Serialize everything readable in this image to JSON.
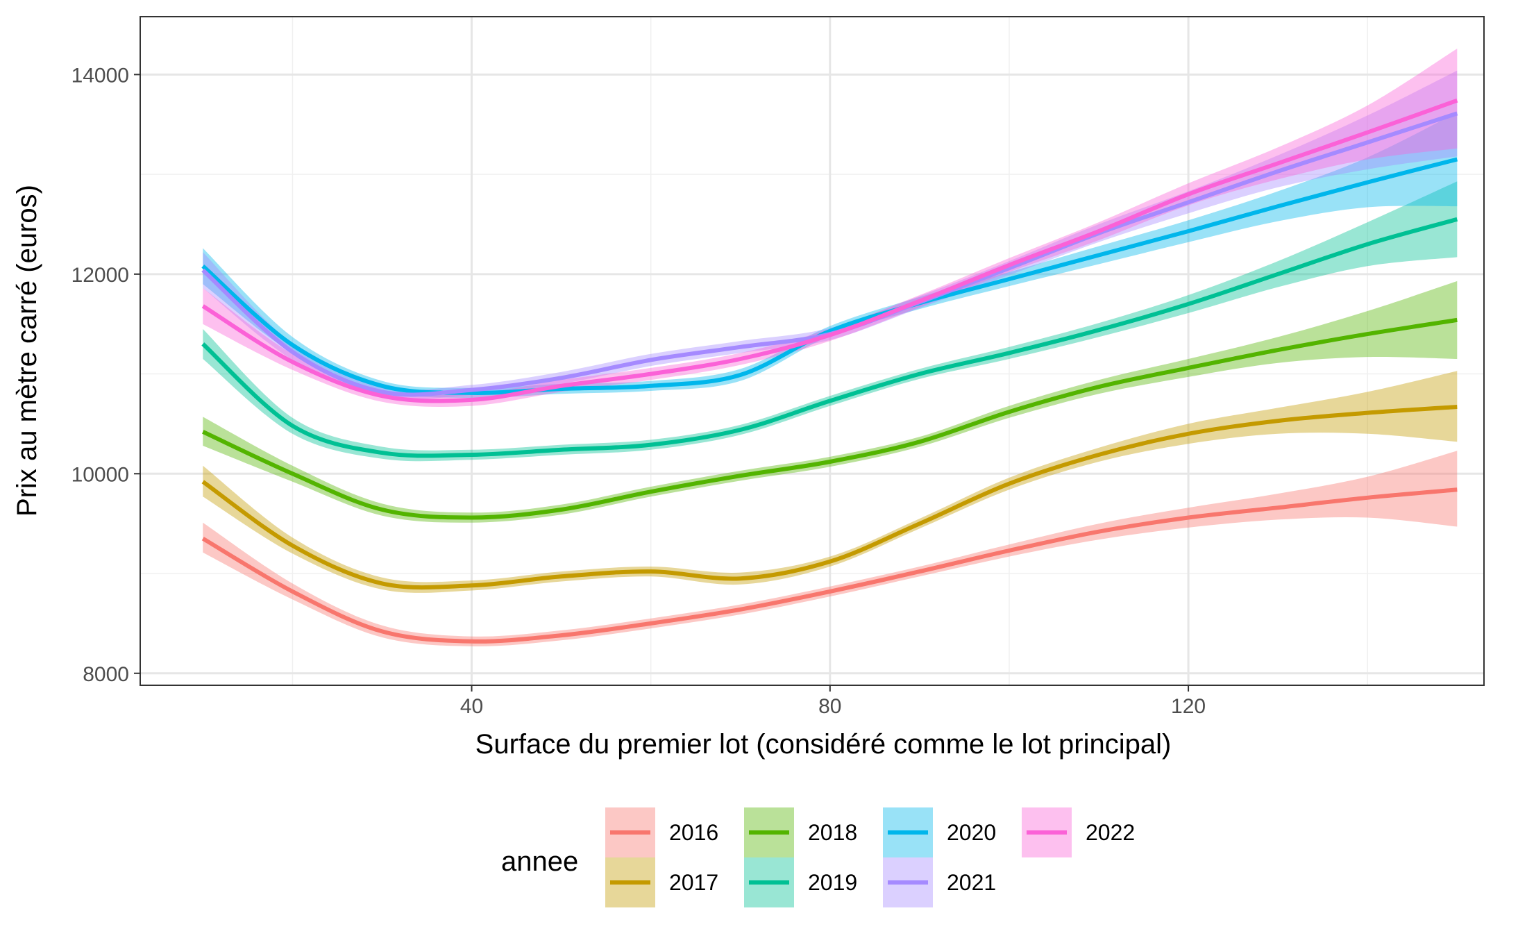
{
  "chart_data": {
    "type": "line",
    "title": "",
    "xlabel": "Surface du premier lot (considéré comme le lot principal)",
    "ylabel": "Prix au mètre carré (euros)",
    "xlim": [
      3,
      153
    ],
    "ylim": [
      7880,
      14580
    ],
    "x_ticks": [
      "40",
      "80",
      "120"
    ],
    "x_tick_values": [
      40,
      80,
      120
    ],
    "y_ticks": [
      "8000",
      "10000",
      "12000",
      "14000"
    ],
    "y_tick_values": [
      8000,
      10000,
      12000,
      14000
    ],
    "grid": true,
    "legend": {
      "title": "annee",
      "position": "bottom"
    },
    "x": [
      10,
      20,
      30,
      40,
      50,
      60,
      70,
      80,
      90,
      100,
      110,
      120,
      130,
      140,
      150
    ],
    "series": [
      {
        "name": "2016",
        "color": "#F8766D",
        "values": [
          9350,
          8820,
          8420,
          8320,
          8380,
          8500,
          8640,
          8820,
          9020,
          9230,
          9420,
          9560,
          9660,
          9760,
          9840
        ],
        "lower": [
          9210,
          8740,
          8360,
          8270,
          8330,
          8450,
          8590,
          8770,
          8970,
          9170,
          9340,
          9460,
          9540,
          9560,
          9470
        ],
        "upper": [
          9510,
          8900,
          8480,
          8370,
          8430,
          8550,
          8690,
          8870,
          9070,
          9290,
          9500,
          9660,
          9800,
          9970,
          10230
        ]
      },
      {
        "name": "2017",
        "color": "#C49A00",
        "values": [
          9920,
          9280,
          8900,
          8880,
          8970,
          9020,
          8950,
          9120,
          9500,
          9900,
          10190,
          10400,
          10530,
          10610,
          10670
        ],
        "lower": [
          9770,
          9200,
          8840,
          8830,
          8920,
          8970,
          8890,
          9070,
          9450,
          9840,
          10120,
          10300,
          10400,
          10400,
          10320
        ],
        "upper": [
          10080,
          9360,
          8960,
          8930,
          9020,
          9070,
          9010,
          9170,
          9550,
          9960,
          10260,
          10500,
          10660,
          10820,
          11030
        ]
      },
      {
        "name": "2018",
        "color": "#53B400",
        "values": [
          10420,
          10000,
          9640,
          9560,
          9640,
          9820,
          9980,
          10120,
          10320,
          10620,
          10870,
          11060,
          11240,
          11400,
          11540
        ],
        "lower": [
          10280,
          9920,
          9580,
          9510,
          9590,
          9770,
          9930,
          10070,
          10270,
          10560,
          10800,
          10970,
          11110,
          11170,
          11150
        ],
        "upper": [
          10570,
          10080,
          9700,
          9610,
          9690,
          9870,
          10030,
          10170,
          10370,
          10680,
          10940,
          11150,
          11370,
          11630,
          11930
        ]
      },
      {
        "name": "2019",
        "color": "#00C094",
        "values": [
          11300,
          10480,
          10210,
          10190,
          10240,
          10290,
          10440,
          10730,
          11000,
          11210,
          11440,
          11700,
          12000,
          12300,
          12550
        ],
        "lower": [
          11150,
          10400,
          10150,
          10140,
          10190,
          10240,
          10390,
          10680,
          10950,
          11150,
          11370,
          11610,
          11870,
          12080,
          12170
        ],
        "upper": [
          11450,
          10560,
          10270,
          10240,
          10290,
          10340,
          10490,
          10780,
          11050,
          11270,
          11510,
          11790,
          12130,
          12520,
          12930
        ]
      },
      {
        "name": "2020",
        "color": "#00B6EB",
        "values": [
          12080,
          11290,
          10880,
          10810,
          10850,
          10880,
          10990,
          11430,
          11710,
          11950,
          12190,
          12430,
          12680,
          12920,
          13150
        ],
        "lower": [
          11900,
          11210,
          10830,
          10760,
          10800,
          10830,
          10930,
          11380,
          11650,
          11880,
          12100,
          12320,
          12530,
          12670,
          12680
        ],
        "upper": [
          12260,
          11370,
          10930,
          10860,
          10900,
          10930,
          11050,
          11480,
          11770,
          12020,
          12280,
          12540,
          12830,
          13170,
          13620
        ]
      },
      {
        "name": "2021",
        "color": "#A58AFF",
        "values": [
          12040,
          11220,
          10820,
          10840,
          10960,
          11140,
          11270,
          11400,
          11720,
          12060,
          12410,
          12720,
          13030,
          13320,
          13610
        ],
        "lower": [
          11860,
          11140,
          10770,
          10790,
          10900,
          11080,
          11210,
          11340,
          11660,
          11990,
          12320,
          12610,
          12870,
          13050,
          13180
        ],
        "upper": [
          12220,
          11300,
          10870,
          10890,
          11020,
          11200,
          11330,
          11460,
          11780,
          12130,
          12500,
          12830,
          13190,
          13590,
          14040
        ]
      },
      {
        "name": "2022",
        "color": "#FB61D7",
        "values": [
          11680,
          11120,
          10780,
          10740,
          10880,
          11000,
          11150,
          11390,
          11730,
          12090,
          12430,
          12800,
          13110,
          13420,
          13740
        ],
        "lower": [
          11500,
          11040,
          10720,
          10680,
          10820,
          10940,
          11090,
          11330,
          11670,
          12020,
          12340,
          12690,
          12950,
          13150,
          13260
        ],
        "upper": [
          11860,
          11200,
          10840,
          10800,
          10940,
          11060,
          11210,
          11450,
          11790,
          12160,
          12520,
          12910,
          13270,
          13690,
          14260
        ]
      }
    ]
  }
}
